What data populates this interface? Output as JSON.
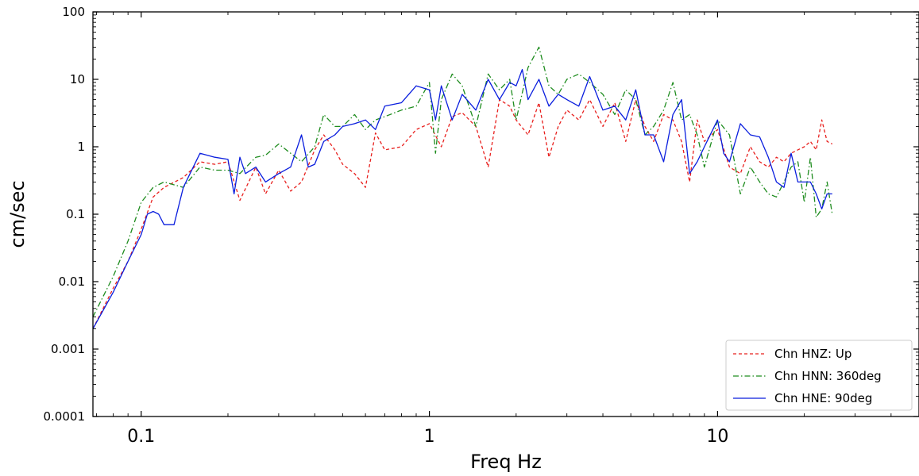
{
  "chart_data": {
    "type": "line",
    "title": "",
    "xlabel": "Freq Hz",
    "ylabel": "cm/sec",
    "xscale": "log",
    "yscale": "log",
    "xlim": [
      0.068,
      50
    ],
    "ylim": [
      0.0001,
      100
    ],
    "xticks": [
      {
        "value": 0.1,
        "label": "0.1"
      },
      {
        "value": 1,
        "label": "1"
      },
      {
        "value": 10,
        "label": "10"
      }
    ],
    "yticks": [
      {
        "value": 0.0001,
        "label": "0.0001"
      },
      {
        "value": 0.001,
        "label": "0.001"
      },
      {
        "value": 0.01,
        "label": "0.01"
      },
      {
        "value": 0.1,
        "label": "0.1"
      },
      {
        "value": 1,
        "label": "1"
      },
      {
        "value": 10,
        "label": "10"
      },
      {
        "value": 100,
        "label": "100"
      }
    ],
    "grid": false,
    "legend": "bottom-right",
    "series": [
      {
        "name": "Chn HNZ: Up",
        "color": "#e8201e",
        "style": "dashed",
        "x": [
          0.068,
          0.08,
          0.09,
          0.1,
          0.11,
          0.12,
          0.14,
          0.16,
          0.18,
          0.2,
          0.22,
          0.25,
          0.27,
          0.3,
          0.33,
          0.36,
          0.4,
          0.43,
          0.47,
          0.5,
          0.55,
          0.6,
          0.65,
          0.7,
          0.8,
          0.9,
          1.0,
          1.1,
          1.2,
          1.3,
          1.45,
          1.6,
          1.75,
          1.9,
          2.0,
          2.2,
          2.4,
          2.6,
          2.8,
          3.0,
          3.3,
          3.6,
          4.0,
          4.4,
          4.8,
          5.2,
          5.6,
          6.0,
          6.5,
          7.0,
          7.5,
          8.0,
          8.5,
          9.0,
          10.0,
          11.0,
          12.0,
          13.0,
          14.0,
          15.0,
          16.0,
          17.0,
          18.0,
          19.0,
          20.0,
          21.0,
          22.0,
          23.0,
          24.0,
          25.0
        ],
        "y": [
          0.002,
          0.008,
          0.02,
          0.06,
          0.18,
          0.25,
          0.35,
          0.6,
          0.55,
          0.6,
          0.16,
          0.5,
          0.2,
          0.45,
          0.22,
          0.3,
          0.9,
          1.5,
          0.9,
          0.55,
          0.4,
          0.25,
          1.6,
          0.9,
          1.0,
          1.8,
          2.2,
          1.0,
          2.8,
          3.2,
          2.0,
          0.5,
          5.0,
          4.0,
          2.5,
          1.5,
          4.5,
          0.7,
          2.0,
          3.5,
          2.5,
          5.0,
          2.0,
          4.5,
          1.2,
          5.0,
          2.0,
          1.2,
          3.0,
          2.5,
          1.2,
          0.3,
          2.5,
          1.2,
          1.8,
          0.5,
          0.4,
          1.0,
          0.6,
          0.5,
          0.7,
          0.6,
          0.8,
          0.9,
          1.0,
          1.2,
          0.9,
          2.5,
          1.2,
          1.1
        ]
      },
      {
        "name": "Chn HNN: 360deg",
        "color": "#1e8c1e",
        "style": "dashdot",
        "x": [
          0.068,
          0.08,
          0.09,
          0.1,
          0.11,
          0.12,
          0.14,
          0.16,
          0.18,
          0.2,
          0.22,
          0.25,
          0.27,
          0.3,
          0.33,
          0.36,
          0.4,
          0.43,
          0.47,
          0.5,
          0.55,
          0.6,
          0.65,
          0.7,
          0.8,
          0.9,
          1.0,
          1.05,
          1.1,
          1.2,
          1.3,
          1.45,
          1.6,
          1.75,
          1.9,
          2.0,
          2.2,
          2.4,
          2.6,
          2.8,
          3.0,
          3.3,
          3.6,
          4.0,
          4.4,
          4.8,
          5.2,
          5.6,
          6.0,
          6.5,
          7.0,
          7.5,
          8.0,
          8.5,
          9.0,
          10.0,
          11.0,
          12.0,
          13.0,
          14.0,
          15.0,
          16.0,
          17.0,
          18.0,
          19.0,
          20.0,
          21.0,
          22.0,
          23.0,
          24.0,
          25.0
        ],
        "y": [
          0.003,
          0.012,
          0.04,
          0.15,
          0.25,
          0.3,
          0.25,
          0.5,
          0.45,
          0.45,
          0.4,
          0.7,
          0.75,
          1.1,
          0.8,
          0.6,
          1.0,
          3.0,
          2.0,
          2.0,
          3.0,
          1.8,
          2.5,
          2.8,
          3.5,
          4.0,
          9.0,
          0.8,
          5.0,
          12.0,
          8.0,
          2.0,
          12.0,
          7.0,
          10.0,
          2.5,
          15.0,
          30.0,
          8.0,
          6.0,
          10.0,
          12.0,
          9.0,
          6.0,
          3.0,
          7.0,
          5.0,
          1.5,
          2.0,
          3.5,
          9.0,
          2.5,
          3.0,
          1.5,
          0.5,
          2.5,
          1.5,
          0.2,
          0.5,
          0.3,
          0.2,
          0.18,
          0.3,
          0.5,
          0.6,
          0.15,
          0.7,
          0.09,
          0.12,
          0.3,
          0.1
        ]
      },
      {
        "name": "Chn HNE: 90deg",
        "color": "#0a1ede",
        "style": "solid",
        "x": [
          0.068,
          0.08,
          0.09,
          0.1,
          0.105,
          0.11,
          0.115,
          0.12,
          0.13,
          0.14,
          0.16,
          0.18,
          0.2,
          0.21,
          0.22,
          0.23,
          0.25,
          0.27,
          0.3,
          0.33,
          0.36,
          0.38,
          0.4,
          0.43,
          0.47,
          0.5,
          0.55,
          0.6,
          0.65,
          0.7,
          0.8,
          0.9,
          1.0,
          1.05,
          1.1,
          1.2,
          1.3,
          1.45,
          1.6,
          1.75,
          1.9,
          2.0,
          2.1,
          2.2,
          2.4,
          2.6,
          2.8,
          3.0,
          3.3,
          3.6,
          4.0,
          4.4,
          4.8,
          5.2,
          5.6,
          6.0,
          6.5,
          7.0,
          7.5,
          8.0,
          8.5,
          9.0,
          10.0,
          10.5,
          11.0,
          12.0,
          13.0,
          14.0,
          15.0,
          16.0,
          17.0,
          18.0,
          19.0,
          20.0,
          21.0,
          22.0,
          23.0,
          24.0,
          25.0
        ],
        "y": [
          0.002,
          0.007,
          0.02,
          0.05,
          0.1,
          0.11,
          0.1,
          0.07,
          0.07,
          0.25,
          0.8,
          0.7,
          0.65,
          0.2,
          0.7,
          0.4,
          0.5,
          0.3,
          0.4,
          0.5,
          1.5,
          0.5,
          0.55,
          1.2,
          1.5,
          2.0,
          2.2,
          2.5,
          1.8,
          4.0,
          4.5,
          8.0,
          7.0,
          2.5,
          8.0,
          2.5,
          6.0,
          3.5,
          10.0,
          5.0,
          9.0,
          8.0,
          14.0,
          5.0,
          10.0,
          4.0,
          6.0,
          5.0,
          4.0,
          11.0,
          3.5,
          4.0,
          2.5,
          7.0,
          1.5,
          1.5,
          0.6,
          3.0,
          5.0,
          0.4,
          0.6,
          1.0,
          2.5,
          0.8,
          0.6,
          2.2,
          1.5,
          1.4,
          0.7,
          0.3,
          0.25,
          0.8,
          0.3,
          0.3,
          0.3,
          0.2,
          0.12,
          0.2,
          0.2
        ]
      }
    ]
  }
}
